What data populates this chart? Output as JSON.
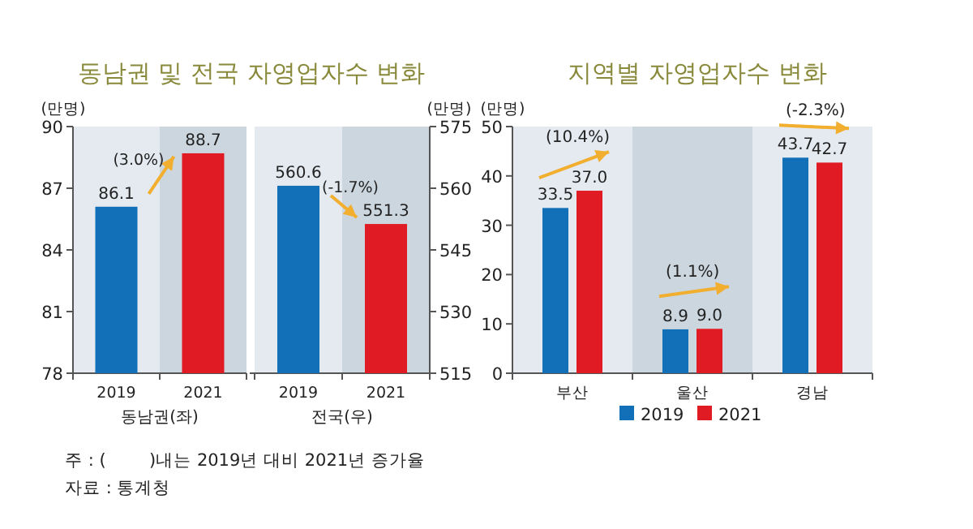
{
  "chart_data": [
    {
      "type": "bar",
      "title": "동남권 및 전국 자영업자수 변화",
      "ylabel": "(만명)",
      "xlabel": "동남권(좌)",
      "categories": [
        "2019",
        "2021"
      ],
      "values": [
        86.1,
        88.7
      ],
      "colors": [
        "#1170b8",
        "#e11b23"
      ],
      "ylim": [
        78,
        90
      ],
      "yticks": [
        78,
        81,
        84,
        87,
        90
      ],
      "data_labels": true,
      "annotations": [
        "(3.0%)"
      ],
      "bands": [
        {
          "axis": "x",
          "from": "2021",
          "to": "2021",
          "color": "#ccd6df"
        }
      ]
    },
    {
      "type": "bar",
      "y2label": "(만명)",
      "xlabel": "전국(우)",
      "categories": [
        "2019",
        "2021"
      ],
      "series": [
        {
          "axis": "y2",
          "colors": [
            "#1170b8",
            "#e11b23"
          ],
          "values": [
            560.6,
            551.3
          ]
        }
      ],
      "y2lim": [
        515,
        575
      ],
      "y2ticks": [
        515,
        530,
        545,
        560,
        575
      ],
      "data_labels": true,
      "annotations": [
        "(-1.7%)"
      ],
      "bands": [
        {
          "axis": "x",
          "from": "2021",
          "to": "2021",
          "color": "#ccd6df"
        }
      ]
    },
    {
      "type": "bar",
      "title": "지역별 자영업자수 변화",
      "ylabel": "(만명)",
      "categories": [
        "부산",
        "울산",
        "경남"
      ],
      "series": [
        {
          "name": "2019",
          "color": "#1170b8",
          "values": [
            33.5,
            8.9,
            43.7
          ],
          "value_labels": [
            "33.5",
            "8.9",
            "43.7"
          ]
        },
        {
          "name": "2021",
          "color": "#e11b23",
          "values": [
            37.0,
            9.0,
            42.7
          ],
          "value_labels": [
            "37.0",
            "9.0",
            "42.7"
          ]
        }
      ],
      "ylim": [
        0,
        50
      ],
      "yticks": [
        0,
        10,
        20,
        30,
        40,
        50
      ],
      "legend": "bottom",
      "annotations": [
        "(10.4%)",
        "(1.1%)",
        "(-2.3%)",
        "주 : (        )내는 2019년 대비 2021년 증가율",
        "자료 : 통계청"
      ],
      "bands": [
        {
          "axis": "x",
          "from": "울산",
          "to": "울산",
          "color": "#ccd6df"
        }
      ]
    }
  ]
}
